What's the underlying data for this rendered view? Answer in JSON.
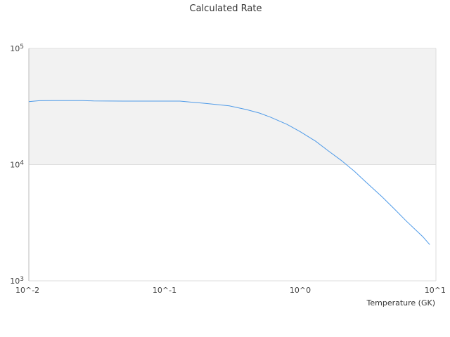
{
  "chart_data": {
    "type": "line",
    "title": "Calculated Rate",
    "xlabel": "Temperature (GK)",
    "ylabel": "",
    "x_scale": "log",
    "y_scale": "log",
    "xlim": [
      0.01,
      10
    ],
    "ylim": [
      1000,
      100000
    ],
    "x_ticks": [
      {
        "value": 0.01,
        "label": "10^-2"
      },
      {
        "value": 0.1,
        "label": "10^-1"
      },
      {
        "value": 1,
        "label": "10^0"
      },
      {
        "value": 10,
        "label": "10^1"
      }
    ],
    "y_ticks": [
      {
        "value": 1000,
        "base": "10",
        "exp": "3"
      },
      {
        "value": 10000,
        "base": "10",
        "exp": "4"
      },
      {
        "value": 100000,
        "base": "10",
        "exp": "5"
      }
    ],
    "grid": true,
    "legend": "none",
    "series": [
      {
        "color": "#4e9ae8",
        "x": [
          0.01,
          0.011,
          0.012,
          0.015,
          0.02,
          0.025,
          0.03,
          0.05,
          0.1,
          0.13,
          0.15,
          0.2,
          0.3,
          0.4,
          0.5,
          0.6,
          0.8,
          1.0,
          1.3,
          1.6,
          2.0,
          2.5,
          3.0,
          4.0,
          5.0,
          6.0,
          8.0,
          9.0
        ],
        "y": [
          34900,
          35200,
          35500,
          35600,
          35600,
          35600,
          35300,
          35200,
          35200,
          35200,
          34700,
          33700,
          32100,
          29800,
          27800,
          25700,
          22200,
          19200,
          15900,
          13200,
          10900,
          8800,
          7200,
          5300,
          4100,
          3300,
          2400,
          2050
        ]
      }
    ]
  },
  "colors": {
    "plot_band": "#f2f2f2",
    "grid_line": "#dddddd",
    "axis_line": "#bbbbbb"
  }
}
